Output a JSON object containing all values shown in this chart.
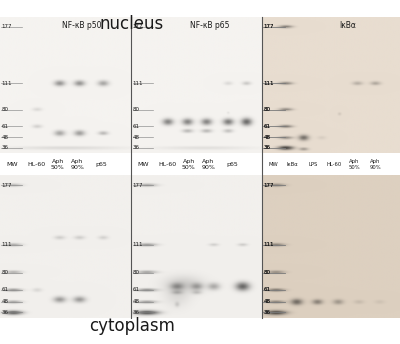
{
  "title_top": "nucleus",
  "title_bottom": "cytoplasm",
  "panel_titles_left": [
    "NF-κB p50",
    "NF-κB p65"
  ],
  "panel_title_right": "IκBα",
  "mw_labels": [
    177,
    111,
    80,
    61,
    48,
    36
  ],
  "col_labels_left_nfkb50": [
    "MW",
    "HL-60",
    "Aph\n50%",
    "Aph\n90%",
    "p65"
  ],
  "col_labels_left_nfkb65": [
    "MW",
    "HL-60",
    "Aph\n50%",
    "Aph\n90%",
    "p65"
  ],
  "col_labels_right": [
    "MW",
    "IκBα",
    "LPS",
    "HL-60",
    "Aph\n50%",
    "Aph\n90%"
  ],
  "bg_left_top": "#f5f3f0",
  "bg_left_bot": "#f2f0ed",
  "bg_right_top": "#e8ddd0",
  "bg_right_bot": "#ddd0c0",
  "white": "#ffffff",
  "text_color": "#1a1a1a",
  "divider_color": "#555555"
}
